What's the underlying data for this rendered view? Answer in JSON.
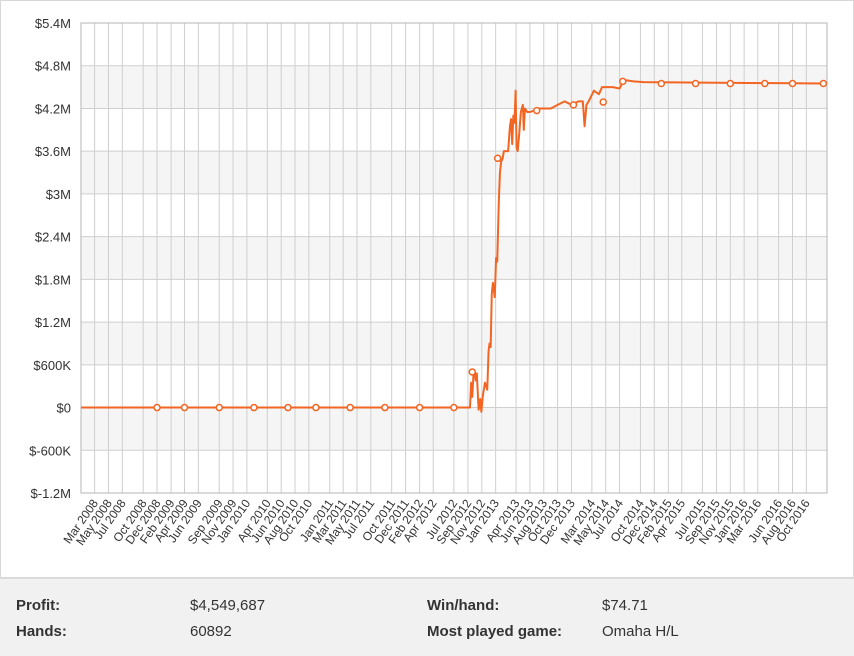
{
  "chart_data": {
    "type": "line",
    "title": "",
    "xlabel": "",
    "ylabel": "",
    "ylim": [
      -1200000,
      5400000
    ],
    "xlim": [
      "2008-01-01",
      "2016-12-31"
    ],
    "grid": true,
    "legend": "none",
    "y_ticks": [
      {
        "value": 5400000,
        "label": "$5.4M"
      },
      {
        "value": 4800000,
        "label": "$4.8M"
      },
      {
        "value": 4200000,
        "label": "$4.2M"
      },
      {
        "value": 3600000,
        "label": "$3.6M"
      },
      {
        "value": 3000000,
        "label": "$3M"
      },
      {
        "value": 2400000,
        "label": "$2.4M"
      },
      {
        "value": 1800000,
        "label": "$1.8M"
      },
      {
        "value": 1200000,
        "label": "$1.2M"
      },
      {
        "value": 600000,
        "label": "$600K"
      },
      {
        "value": 0,
        "label": "$0"
      },
      {
        "value": -600000,
        "label": "$-600K"
      },
      {
        "value": -1200000,
        "label": "$-1.2M"
      }
    ],
    "x_ticks": [
      {
        "date": "2008-03-01",
        "label": "Mar 2008"
      },
      {
        "date": "2008-05-01",
        "label": "May 2008"
      },
      {
        "date": "2008-07-01",
        "label": "Jul 2008"
      },
      {
        "date": "2008-10-01",
        "label": "Oct 2008"
      },
      {
        "date": "2008-12-01",
        "label": "Dec 2008"
      },
      {
        "date": "2009-02-01",
        "label": "Feb 2009"
      },
      {
        "date": "2009-04-01",
        "label": "Apr 2009"
      },
      {
        "date": "2009-06-01",
        "label": "Jun 2009"
      },
      {
        "date": "2009-09-01",
        "label": "Sep 2009"
      },
      {
        "date": "2009-11-01",
        "label": "Nov 2009"
      },
      {
        "date": "2010-01-01",
        "label": "Jan 2010"
      },
      {
        "date": "2010-04-01",
        "label": "Apr 2010"
      },
      {
        "date": "2010-06-01",
        "label": "Jun 2010"
      },
      {
        "date": "2010-08-01",
        "label": "Aug 2010"
      },
      {
        "date": "2010-10-01",
        "label": "Oct 2010"
      },
      {
        "date": "2011-01-01",
        "label": "Jan 2011"
      },
      {
        "date": "2011-03-01",
        "label": "Mar 2011"
      },
      {
        "date": "2011-05-01",
        "label": "May 2011"
      },
      {
        "date": "2011-07-01",
        "label": "Jul 2011"
      },
      {
        "date": "2011-10-01",
        "label": "Oct 2011"
      },
      {
        "date": "2011-12-01",
        "label": "Dec 2011"
      },
      {
        "date": "2012-02-01",
        "label": "Feb 2012"
      },
      {
        "date": "2012-04-01",
        "label": "Apr 2012"
      },
      {
        "date": "2012-07-01",
        "label": "Jul 2012"
      },
      {
        "date": "2012-09-01",
        "label": "Sep 2012"
      },
      {
        "date": "2012-11-01",
        "label": "Nov 2012"
      },
      {
        "date": "2013-01-01",
        "label": "Jan 2013"
      },
      {
        "date": "2013-04-01",
        "label": "Apr 2013"
      },
      {
        "date": "2013-06-01",
        "label": "Jun 2013"
      },
      {
        "date": "2013-08-01",
        "label": "Aug 2013"
      },
      {
        "date": "2013-10-01",
        "label": "Oct 2013"
      },
      {
        "date": "2013-12-01",
        "label": "Dec 2013"
      },
      {
        "date": "2014-03-01",
        "label": "Mar 2014"
      },
      {
        "date": "2014-05-01",
        "label": "May 2014"
      },
      {
        "date": "2014-07-01",
        "label": "Jul 2014"
      },
      {
        "date": "2014-10-01",
        "label": "Oct 2014"
      },
      {
        "date": "2014-12-01",
        "label": "Dec 2014"
      },
      {
        "date": "2015-02-01",
        "label": "Feb 2015"
      },
      {
        "date": "2015-04-01",
        "label": "Apr 2015"
      },
      {
        "date": "2015-07-01",
        "label": "Jul 2015"
      },
      {
        "date": "2015-09-01",
        "label": "Sep 2015"
      },
      {
        "date": "2015-11-01",
        "label": "Nov 2015"
      },
      {
        "date": "2016-01-01",
        "label": "Jan 2016"
      },
      {
        "date": "2016-03-01",
        "label": "Mar 2016"
      },
      {
        "date": "2016-06-01",
        "label": "Jun 2016"
      },
      {
        "date": "2016-08-01",
        "label": "Aug 2016"
      },
      {
        "date": "2016-10-01",
        "label": "Oct 2016"
      }
    ],
    "series": [
      {
        "name": "",
        "color": "#f26522",
        "line": [
          [
            "2008-01-01",
            0
          ],
          [
            "2012-09-10",
            0
          ],
          [
            "2012-09-15",
            350000
          ],
          [
            "2012-09-20",
            150000
          ],
          [
            "2012-09-25",
            450000
          ],
          [
            "2012-10-01",
            500000
          ],
          [
            "2012-10-05",
            380000
          ],
          [
            "2012-10-10",
            480000
          ],
          [
            "2012-10-18",
            -30000
          ],
          [
            "2012-10-25",
            120000
          ],
          [
            "2012-10-30",
            -60000
          ],
          [
            "2012-11-05",
            150000
          ],
          [
            "2012-11-15",
            350000
          ],
          [
            "2012-11-25",
            250000
          ],
          [
            "2012-12-01",
            800000
          ],
          [
            "2012-12-05",
            900000
          ],
          [
            "2012-12-10",
            850000
          ],
          [
            "2012-12-15",
            1600000
          ],
          [
            "2012-12-20",
            1750000
          ],
          [
            "2012-12-28",
            1550000
          ],
          [
            "2013-01-03",
            2100000
          ],
          [
            "2013-01-08",
            2050000
          ],
          [
            "2013-01-15",
            2900000
          ],
          [
            "2013-01-20",
            3300000
          ],
          [
            "2013-01-25",
            3450000
          ],
          [
            "2013-02-01",
            3500000
          ],
          [
            "2013-02-06",
            3600000
          ],
          [
            "2013-02-15",
            3600000
          ],
          [
            "2013-02-25",
            3600000
          ],
          [
            "2013-03-05",
            3950000
          ],
          [
            "2013-03-10",
            4050000
          ],
          [
            "2013-03-15",
            3700000
          ],
          [
            "2013-03-20",
            4100000
          ],
          [
            "2013-03-25",
            4000000
          ],
          [
            "2013-03-30",
            4450000
          ],
          [
            "2013-04-03",
            3650000
          ],
          [
            "2013-04-08",
            3600000
          ],
          [
            "2013-04-15",
            3850000
          ],
          [
            "2013-04-22",
            4150000
          ],
          [
            "2013-05-01",
            4250000
          ],
          [
            "2013-05-05",
            3900000
          ],
          [
            "2013-05-10",
            4200000
          ],
          [
            "2013-05-20",
            4150000
          ],
          [
            "2013-06-01",
            4150000
          ],
          [
            "2013-07-15",
            4200000
          ],
          [
            "2013-09-01",
            4200000
          ],
          [
            "2013-10-01",
            4250000
          ],
          [
            "2013-11-01",
            4300000
          ],
          [
            "2013-12-01",
            4250000
          ],
          [
            "2014-01-01",
            4300000
          ],
          [
            "2014-01-20",
            4300000
          ],
          [
            "2014-01-28",
            3950000
          ],
          [
            "2014-02-05",
            4250000
          ],
          [
            "2014-02-15",
            4300000
          ],
          [
            "2014-03-10",
            4450000
          ],
          [
            "2014-04-01",
            4400000
          ],
          [
            "2014-04-15",
            4500000
          ],
          [
            "2014-06-01",
            4500000
          ],
          [
            "2014-07-01",
            4480000
          ],
          [
            "2014-07-20",
            4600000
          ],
          [
            "2014-09-01",
            4580000
          ],
          [
            "2014-10-15",
            4570000
          ],
          [
            "2016-12-15",
            4549687
          ]
        ],
        "markers": [
          [
            "2008-12-01",
            0
          ],
          [
            "2009-04-01",
            0
          ],
          [
            "2009-09-01",
            0
          ],
          [
            "2010-02-01",
            0
          ],
          [
            "2010-07-01",
            0
          ],
          [
            "2010-11-01",
            0
          ],
          [
            "2011-04-01",
            0
          ],
          [
            "2011-09-01",
            0
          ],
          [
            "2012-02-01",
            0
          ],
          [
            "2012-07-01",
            0
          ],
          [
            "2012-09-20",
            500000
          ],
          [
            "2013-01-10",
            3500000
          ],
          [
            "2013-07-01",
            4170000
          ],
          [
            "2013-12-10",
            4250000
          ],
          [
            "2014-04-20",
            4290000
          ],
          [
            "2014-07-15",
            4580000
          ],
          [
            "2015-01-01",
            4550000
          ],
          [
            "2015-06-01",
            4550000
          ],
          [
            "2015-11-01",
            4550000
          ],
          [
            "2016-04-01",
            4550000
          ],
          [
            "2016-08-01",
            4550000
          ],
          [
            "2016-12-15",
            4550000
          ]
        ]
      }
    ]
  },
  "stats": {
    "profit_label": "Profit:",
    "profit_value": "$4,549,687",
    "hands_label": "Hands:",
    "hands_value": "60892",
    "win_label": "Win/hand:",
    "win_value": "$74.71",
    "game_label": "Most played game:",
    "game_value": "Omaha H/L"
  }
}
